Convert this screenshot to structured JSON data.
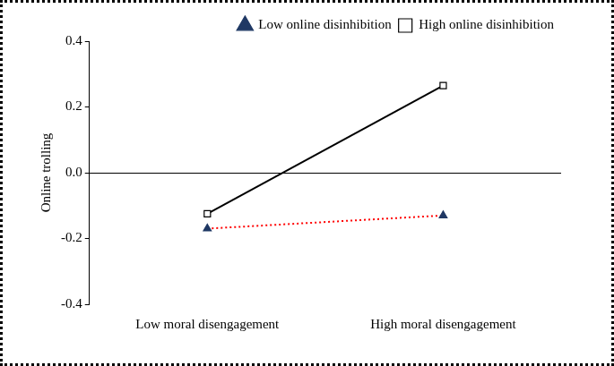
{
  "chart_data": {
    "type": "line",
    "categories": [
      "Low moral disengagement",
      "High moral disengagement"
    ],
    "y_label": "Online trolling",
    "ylim": [
      -0.4,
      0.4
    ],
    "yticks": [
      -0.4,
      -0.2,
      {
        "value": 0,
        "label": "0.0"
      },
      0.2,
      0.4
    ],
    "legend": "top-right",
    "series": [
      {
        "name": "Low online disinhibition",
        "color": "#ff0000",
        "marker": "triangle",
        "line_style": "dotted",
        "values": [
          -0.17,
          -0.13
        ]
      },
      {
        "name": "High online disinhibition",
        "color": "#000000",
        "marker": "square",
        "line_style": "solid",
        "values": [
          -0.125,
          0.265
        ]
      }
    ]
  }
}
